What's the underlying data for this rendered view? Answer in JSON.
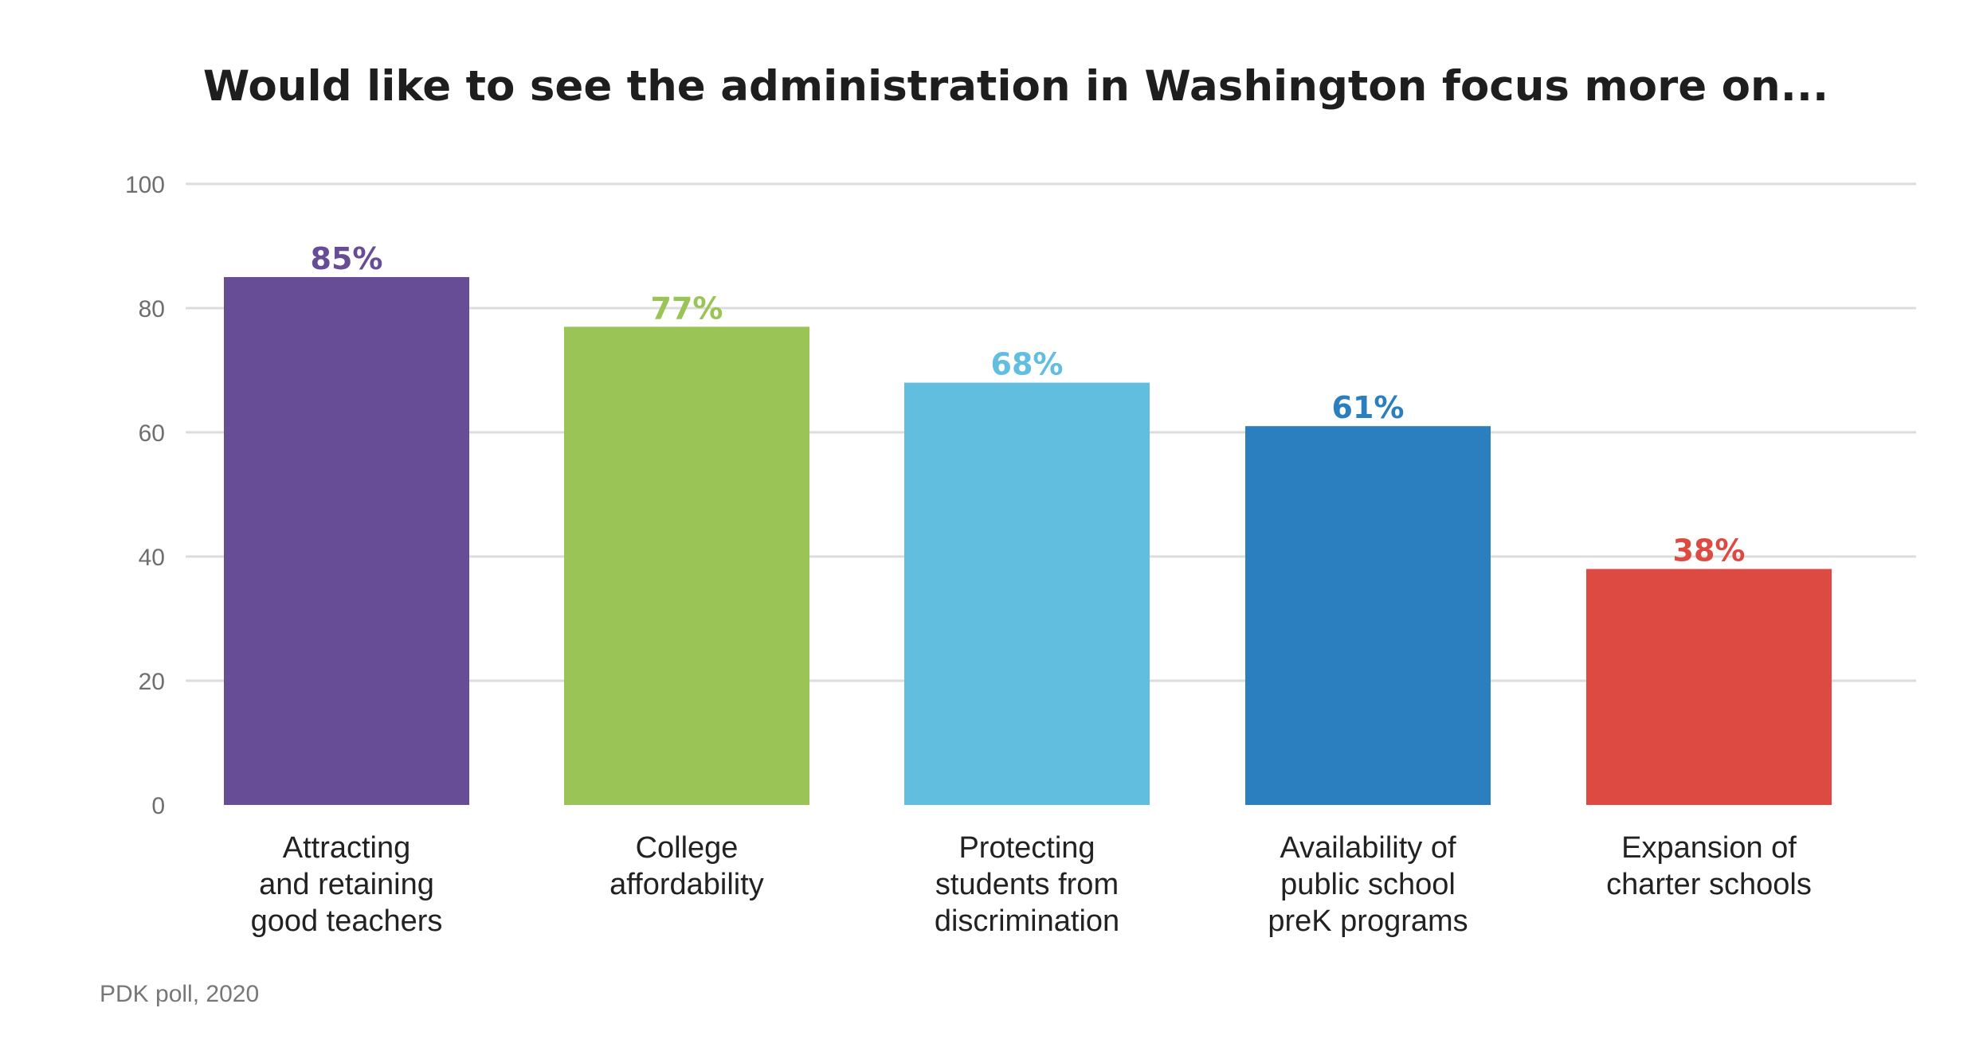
{
  "chart_data": {
    "type": "bar",
    "title": "Would like to see the administration in Washington focus more on...",
    "categories": [
      [
        "Attracting",
        "and retaining",
        "good teachers"
      ],
      [
        "College",
        "affordability"
      ],
      [
        "Protecting",
        "students from",
        "discrimination"
      ],
      [
        "Availability of",
        "public school",
        "preK programs"
      ],
      [
        "Expansion of",
        "charter schools"
      ]
    ],
    "values": [
      85,
      77,
      68,
      61,
      38
    ],
    "data_labels": [
      "85%",
      "77%",
      "68%",
      "61%",
      "38%"
    ],
    "colors": [
      "#674c96",
      "#9bc457",
      "#62bedf",
      "#2c7fbf",
      "#dd4a42"
    ],
    "ylim": [
      0,
      100
    ],
    "yticks": [
      0,
      20,
      40,
      60,
      80,
      100
    ],
    "grid": true,
    "xlabel": "",
    "ylabel": ""
  },
  "source": "PDK poll, 2020"
}
